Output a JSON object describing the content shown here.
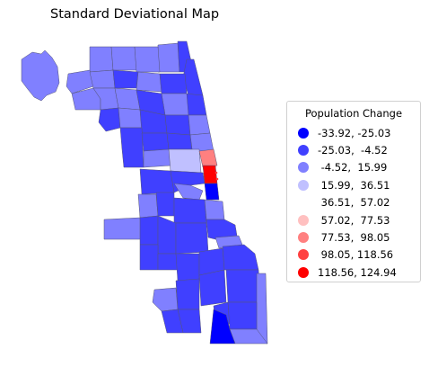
{
  "title": "Standard Deviational Map",
  "legend": {
    "title": "Population Change",
    "items": [
      {
        "label": "-33.92, -25.03",
        "color": "#0000ff"
      },
      {
        "label": "-25.03,  -4.52",
        "color": "#4040ff"
      },
      {
        "label": " -4.52,  15.99",
        "color": "#8080ff"
      },
      {
        "label": " 15.99,  36.51",
        "color": "#c0c0ff"
      },
      {
        "label": " 36.51,  57.02",
        "color": "#ffffff"
      },
      {
        "label": " 57.02,  77.53",
        "color": "#ffc0c0"
      },
      {
        "label": " 77.53,  98.05",
        "color": "#ff8080"
      },
      {
        "label": " 98.05, 118.56",
        "color": "#ff4040"
      },
      {
        "label": "118.56, 124.94",
        "color": "#ff0000"
      }
    ]
  }
}
